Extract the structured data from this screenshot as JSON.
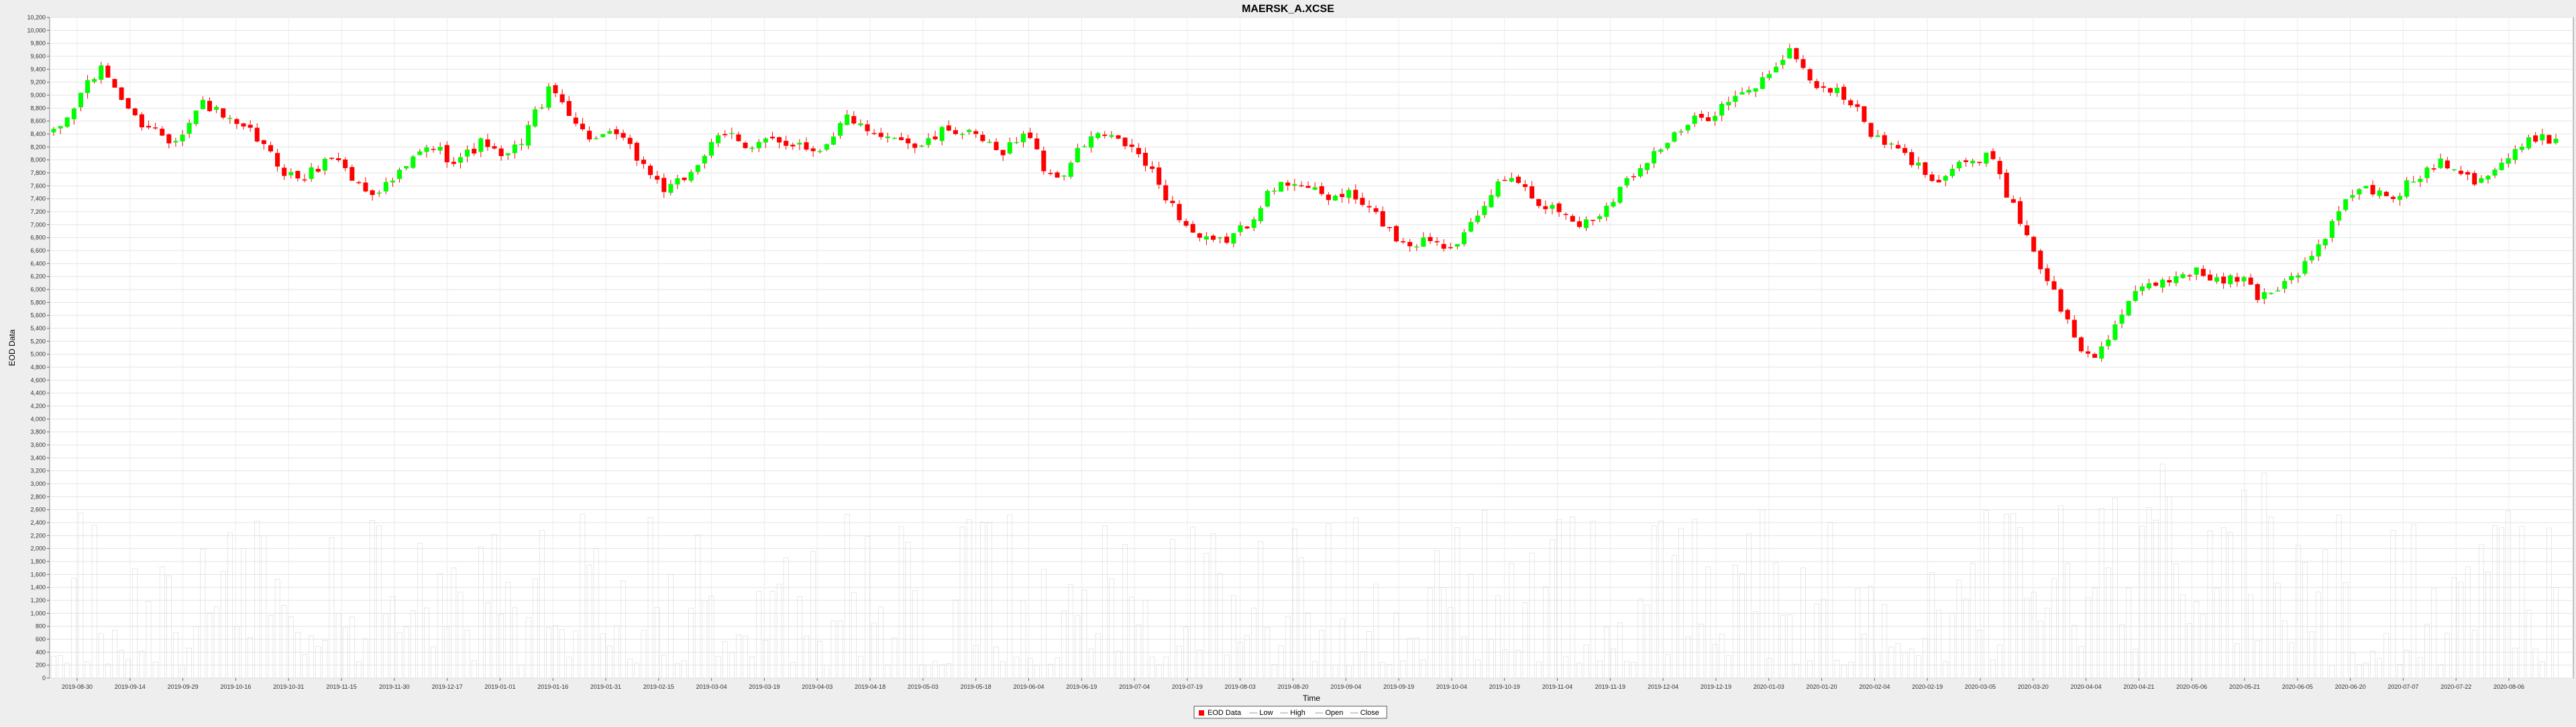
{
  "chart_data": {
    "type": "candlestick",
    "title": "MAERSK_A.XCSE",
    "xlabel": "Time",
    "ylabel": "EOD Data",
    "ylim": [
      0,
      10200
    ],
    "y_tick_step": 200,
    "grid": true,
    "legend_position": "bottom-center",
    "x_ticks": [
      "2019-08-30",
      "2019-09-14",
      "2019-09-29",
      "2019-10-16",
      "2019-10-31",
      "2019-11-15",
      "2019-11-30",
      "2019-12-17",
      "2019-01-01",
      "2019-01-16",
      "2019-01-31",
      "2019-02-15",
      "2019-03-04",
      "2019-03-19",
      "2019-04-03",
      "2019-04-18",
      "2019-05-03",
      "2019-05-18",
      "2019-06-04",
      "2019-06-19",
      "2019-07-04",
      "2019-07-19",
      "2019-08-03",
      "2019-08-20",
      "2019-09-04",
      "2019-09-19",
      "2019-10-04",
      "2019-10-19",
      "2019-11-04",
      "2019-11-19",
      "2019-12-04",
      "2019-12-19",
      "2020-01-03",
      "2020-01-20",
      "2020-02-04",
      "2020-02-19",
      "2020-03-05",
      "2020-03-20",
      "2020-04-04",
      "2020-04-21",
      "2020-05-06",
      "2020-05-21",
      "2020-06-05",
      "2020-06-20",
      "2020-07-07",
      "2020-07-22",
      "2020-08-06"
    ],
    "close_path": [
      8400,
      8700,
      9200,
      9400,
      9000,
      8600,
      8500,
      8300,
      8500,
      8900,
      8700,
      8500,
      8400,
      8100,
      7800,
      7700,
      7900,
      8100,
      7700,
      7500,
      7600,
      7800,
      8100,
      8200,
      8000,
      8100,
      8300,
      8000,
      8200,
      8700,
      9100,
      8800,
      8400,
      8300,
      8400,
      8100,
      7800,
      7500,
      7700,
      8000,
      8300,
      8400,
      8200,
      8300,
      8200,
      8300,
      8100,
      8400,
      8700,
      8400,
      8300,
      8400,
      8200,
      8300,
      8500,
      8400,
      8300,
      8100,
      8300,
      8400,
      7700,
      7800,
      8200,
      8400,
      8300,
      8200,
      7900,
      7500,
      7100,
      6800,
      6700,
      6800,
      7000,
      7400,
      7600,
      7700,
      7500,
      7400,
      7500,
      7300,
      7100,
      6800,
      6700,
      6800,
      6700,
      6800,
      7100,
      7600,
      7800,
      7500,
      7300,
      7200,
      7000,
      7100,
      7400,
      7700,
      8000,
      8200,
      8400,
      8600,
      8700,
      8900,
      9000,
      9200,
      9500,
      9700,
      9200,
      9100,
      9000,
      8700,
      8300,
      8200,
      8000,
      7800,
      7700,
      8000,
      7900,
      8100,
      7400,
      6900,
      6300,
      5800,
      5200,
      4900,
      5300,
      5700,
      6000,
      6100,
      6200,
      6300,
      6200,
      6100,
      6200,
      5900,
      6000,
      6200,
      6400,
      6800,
      7200,
      7600,
      7500,
      7400,
      7600,
      7800,
      8000,
      7900,
      7700,
      7800,
      8000,
      8200,
      8400,
      8300
    ],
    "volume_scale_max": 4800,
    "series": [
      {
        "name": "EOD Data",
        "color": "#ff0000"
      },
      {
        "name": "Low",
        "color": "#bbbbbb"
      },
      {
        "name": "High",
        "color": "#bbbbbb"
      },
      {
        "name": "Open",
        "color": "#bbbbbb"
      },
      {
        "name": "Close",
        "color": "#bbbbbb"
      }
    ],
    "up_color": "#00ff00",
    "down_color": "#ff0000",
    "wick_color": "#ff0000"
  }
}
